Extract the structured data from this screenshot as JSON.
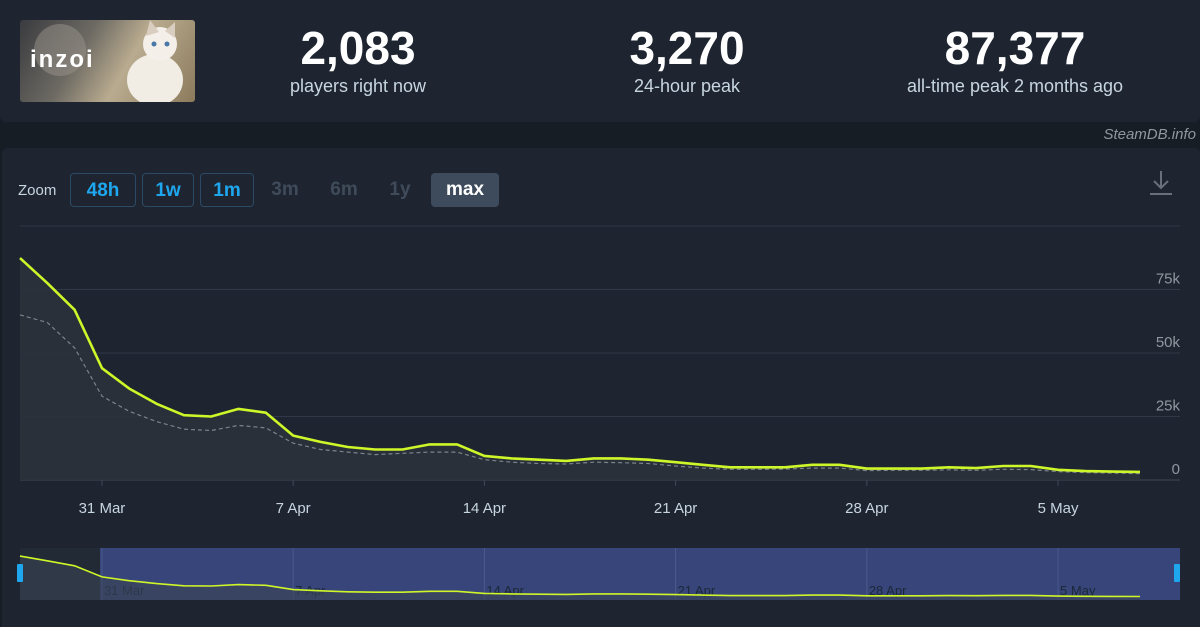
{
  "game": {
    "logo_text": "inZOI"
  },
  "stats": {
    "current": {
      "value": "2,083",
      "label": "players right now"
    },
    "peak_24h": {
      "value": "3,270",
      "label": "24-hour peak"
    },
    "all_time": {
      "value": "87,377",
      "label": "all-time peak 2 months ago"
    }
  },
  "source_label": "SteamDB.info",
  "zoom": {
    "label": "Zoom",
    "buttons": [
      {
        "label": "48h",
        "state": "active"
      },
      {
        "label": "1w",
        "state": "active"
      },
      {
        "label": "1m",
        "state": "active"
      },
      {
        "label": "3m",
        "state": "disabled"
      },
      {
        "label": "6m",
        "state": "disabled"
      },
      {
        "label": "1y",
        "state": "disabled"
      },
      {
        "label": "max",
        "state": "selected"
      }
    ]
  },
  "colors": {
    "players_line": "#cff628",
    "average_line": "#8f98a0",
    "grid": "#2e3846",
    "navigator_selection": "#3b4a86"
  },
  "chart_data": {
    "type": "line",
    "x_axis": {
      "type": "date",
      "ticks": [
        "31 Mar",
        "7 Apr",
        "14 Apr",
        "21 Apr",
        "28 Apr",
        "5 May"
      ]
    },
    "y_axis": {
      "ticks": [
        "0",
        "25k",
        "50k",
        "75k"
      ],
      "range": [
        0,
        100000
      ],
      "position": "right"
    },
    "grid": true,
    "x": [
      "2025-03-28",
      "2025-03-29",
      "2025-03-30",
      "2025-03-31",
      "2025-04-01",
      "2025-04-02",
      "2025-04-03",
      "2025-04-04",
      "2025-04-05",
      "2025-04-06",
      "2025-04-07",
      "2025-04-08",
      "2025-04-09",
      "2025-04-10",
      "2025-04-11",
      "2025-04-12",
      "2025-04-13",
      "2025-04-14",
      "2025-04-15",
      "2025-04-16",
      "2025-04-17",
      "2025-04-18",
      "2025-04-19",
      "2025-04-20",
      "2025-04-21",
      "2025-04-22",
      "2025-04-23",
      "2025-04-24",
      "2025-04-25",
      "2025-04-26",
      "2025-04-27",
      "2025-04-28",
      "2025-04-29",
      "2025-04-30",
      "2025-05-01",
      "2025-05-02",
      "2025-05-03",
      "2025-05-04",
      "2025-05-05",
      "2025-05-06",
      "2025-05-07",
      "2025-05-08"
    ],
    "series": [
      {
        "values": [
          87377,
          77500,
          67000,
          44000,
          36000,
          30000,
          25500,
          25000,
          28000,
          26500,
          17500,
          15000,
          13000,
          12000,
          12000,
          14000,
          14000,
          9500,
          8500,
          8000,
          7500,
          8500,
          8500,
          8000,
          7000,
          6000,
          5000,
          5000,
          5000,
          6000,
          6000,
          4500,
          4500,
          4500,
          5000,
          4700,
          5500,
          5500,
          4000,
          3500,
          3300,
          3200
        ]
      },
      {
        "values": [
          65000,
          62000,
          52000,
          33000,
          27000,
          23000,
          20000,
          19500,
          21500,
          20500,
          14500,
          12000,
          11000,
          10000,
          10500,
          11000,
          11000,
          8000,
          7000,
          6500,
          6300,
          7000,
          6800,
          6500,
          5500,
          4700,
          4200,
          4200,
          4300,
          4700,
          4700,
          3700,
          3800,
          3800,
          4000,
          3800,
          4200,
          4100,
          3300,
          2900,
          2700,
          2500
        ]
      }
    ]
  }
}
